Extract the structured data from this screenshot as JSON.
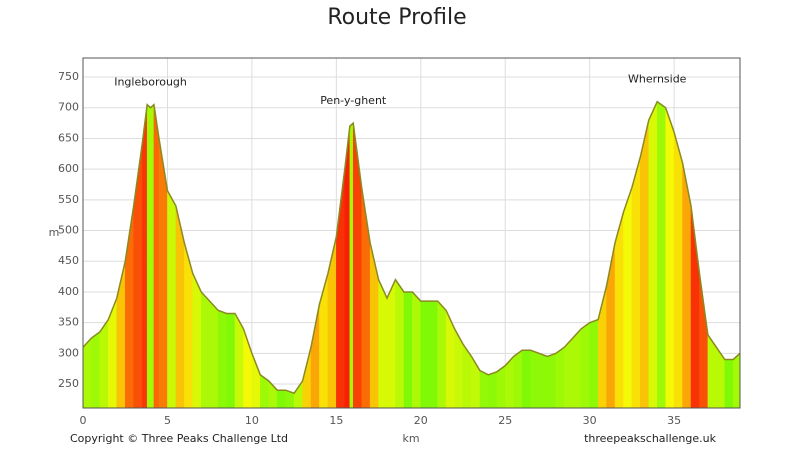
{
  "chart_data": {
    "type": "area",
    "title": "Route Profile",
    "x_label": "km",
    "y_label": "m",
    "footer_left": "Copyright © Three Peaks Challenge Ltd",
    "footer_right": "threepeakschallenge.uk",
    "annotations": [
      {
        "text": "Ingleborough",
        "x": 4,
        "y": 705
      },
      {
        "text": "Pen-y-ghent",
        "x": 16,
        "y": 675
      },
      {
        "text": "Whernside",
        "x": 34,
        "y": 710
      }
    ],
    "x": [
      0,
      0.5,
      1,
      1.5,
      2,
      2.5,
      3,
      3.5,
      3.8,
      4,
      4.2,
      4.5,
      5,
      5.5,
      6,
      6.5,
      7,
      7.5,
      8,
      8.5,
      9,
      9.5,
      10,
      10.5,
      11,
      11.5,
      12,
      12.5,
      13,
      13.5,
      14,
      14.5,
      15,
      15.5,
      15.8,
      16,
      16.5,
      17,
      17.5,
      18,
      18.5,
      19,
      19.5,
      20,
      21,
      21.5,
      22,
      22.5,
      23,
      23.5,
      24,
      24.5,
      25,
      25.5,
      26,
      26.5,
      27,
      27.5,
      28,
      28.5,
      29,
      29.5,
      30,
      30.5,
      31,
      31.5,
      32,
      32.5,
      33,
      33.5,
      34,
      34.5,
      35,
      35.5,
      36,
      36.5,
      37,
      37.5,
      38,
      38.5,
      38.9
    ],
    "series": [
      {
        "color": "#8a8a20",
        "values": [
          310,
          325,
          335,
          355,
          390,
          450,
          540,
          640,
          705,
          700,
          705,
          650,
          565,
          540,
          480,
          430,
          400,
          385,
          370,
          365,
          365,
          340,
          300,
          265,
          255,
          240,
          240,
          235,
          255,
          310,
          380,
          430,
          490,
          600,
          670,
          675,
          570,
          480,
          420,
          390,
          420,
          400,
          400,
          385,
          385,
          370,
          340,
          315,
          295,
          272,
          265,
          270,
          280,
          295,
          305,
          305,
          300,
          295,
          300,
          310,
          325,
          340,
          350,
          355,
          410,
          480,
          530,
          570,
          620,
          680,
          710,
          700,
          660,
          610,
          540,
          430,
          330,
          310,
          290,
          290,
          300
        ]
      }
    ],
    "xlim": [
      0,
      38.9
    ],
    "ylim": [
      211,
      781
    ],
    "xticks": [
      0,
      5,
      10,
      15,
      20,
      25,
      30,
      35
    ],
    "yticks": [
      250,
      300,
      350,
      400,
      450,
      500,
      550,
      600,
      650,
      700,
      750
    ],
    "grid": true
  }
}
